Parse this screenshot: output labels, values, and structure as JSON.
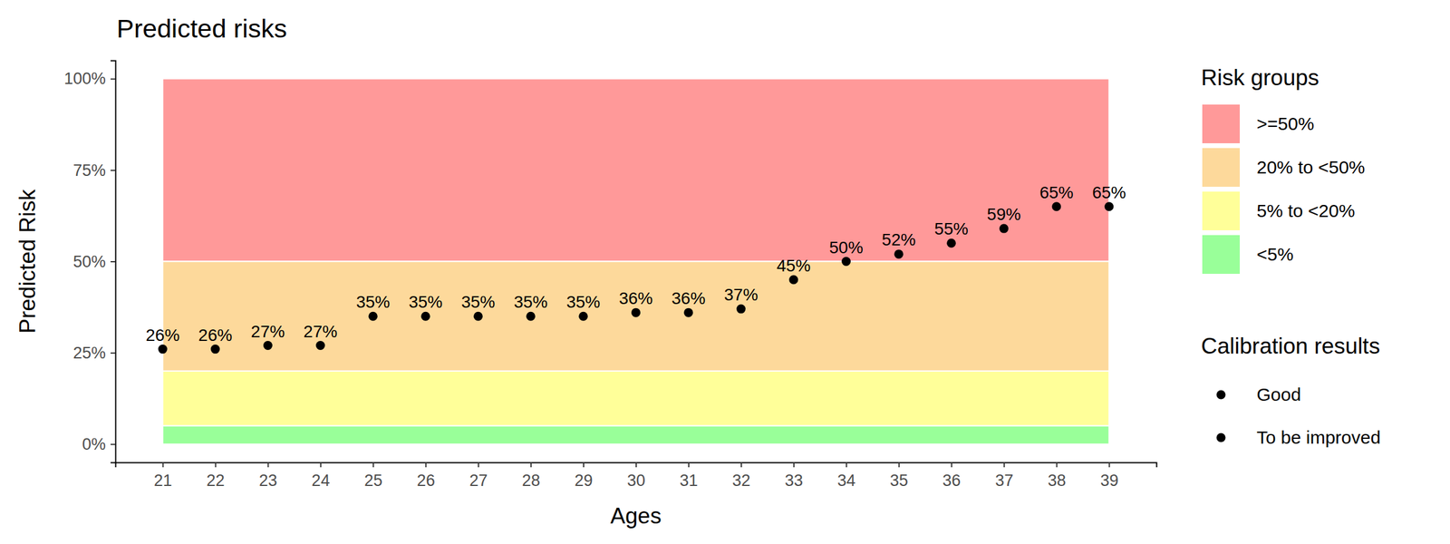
{
  "chart_data": {
    "type": "scatter",
    "title": "Predicted risks",
    "x_label": "Ages",
    "y_label": "Predicted Risk",
    "x": [
      21,
      22,
      23,
      24,
      25,
      26,
      27,
      28,
      29,
      30,
      31,
      32,
      33,
      34,
      35,
      36,
      37,
      38,
      39
    ],
    "values": [
      26,
      26,
      27,
      27,
      35,
      35,
      35,
      35,
      35,
      36,
      36,
      37,
      45,
      50,
      52,
      55,
      59,
      65,
      65
    ],
    "value_labels": [
      "26%",
      "26%",
      "27%",
      "27%",
      "35%",
      "35%",
      "35%",
      "35%",
      "35%",
      "36%",
      "36%",
      "37%",
      "45%",
      "50%",
      "52%",
      "55%",
      "59%",
      "65%",
      "65%"
    ],
    "color": "#000000",
    "marker": "circle",
    "data_labels": true,
    "xlim": [
      20.1,
      39.9
    ],
    "xticks": [
      21,
      22,
      23,
      24,
      25,
      26,
      27,
      28,
      29,
      30,
      31,
      32,
      33,
      34,
      35,
      36,
      37,
      38,
      39
    ],
    "ylim": [
      -5,
      105
    ],
    "yticks": [
      {
        "value": 0,
        "label": "0%"
      },
      {
        "value": 25,
        "label": "25%"
      },
      {
        "value": 50,
        "label": "50%"
      },
      {
        "value": 75,
        "label": "75%"
      },
      {
        "value": 100,
        "label": "100%"
      }
    ],
    "risk_groups": {
      "title": "Risk groups",
      "bands": [
        {
          "name": ">=50%",
          "color": "#ff9999",
          "from": 50,
          "to": 100
        },
        {
          "name": "20% to <50%",
          "color": "#fdd99b",
          "from": 20,
          "to": 50
        },
        {
          "name": "5% to <20%",
          "color": "#ffff99",
          "from": 5,
          "to": 20
        },
        {
          "name": "<5%",
          "color": "#99ff99",
          "from": 0,
          "to": 5
        }
      ]
    },
    "calibration_results": {
      "title": "Calibration results",
      "items": [
        {
          "name": "Good",
          "color": "#000000"
        },
        {
          "name": "To be improved",
          "color": "#000000"
        }
      ]
    }
  }
}
